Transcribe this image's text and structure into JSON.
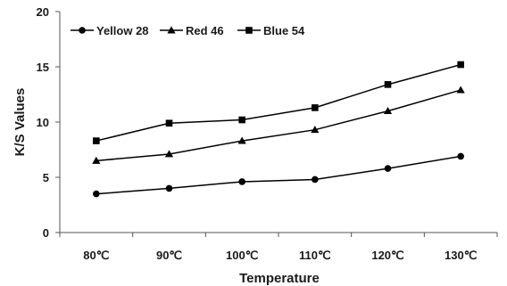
{
  "chart_data": {
    "type": "line",
    "title": "",
    "xlabel": "Temperature",
    "ylabel": "K/S Values",
    "categories": [
      "80℃",
      "90℃",
      "100℃",
      "110℃",
      "120℃",
      "130℃"
    ],
    "ylim": [
      0,
      20
    ],
    "yticks": [
      0,
      5,
      10,
      15,
      20
    ],
    "grid": false,
    "legend_position": "top-left",
    "series": [
      {
        "name": "Yellow 28",
        "marker": "circle",
        "color": "#000000",
        "values": [
          3.5,
          4.0,
          4.6,
          4.8,
          5.8,
          6.9
        ]
      },
      {
        "name": "Red 46",
        "marker": "triangle",
        "color": "#000000",
        "values": [
          6.5,
          7.1,
          8.3,
          9.3,
          11.0,
          12.9
        ]
      },
      {
        "name": "Blue 54",
        "marker": "square",
        "color": "#000000",
        "values": [
          8.3,
          9.9,
          10.2,
          11.3,
          13.4,
          15.2
        ]
      }
    ]
  }
}
